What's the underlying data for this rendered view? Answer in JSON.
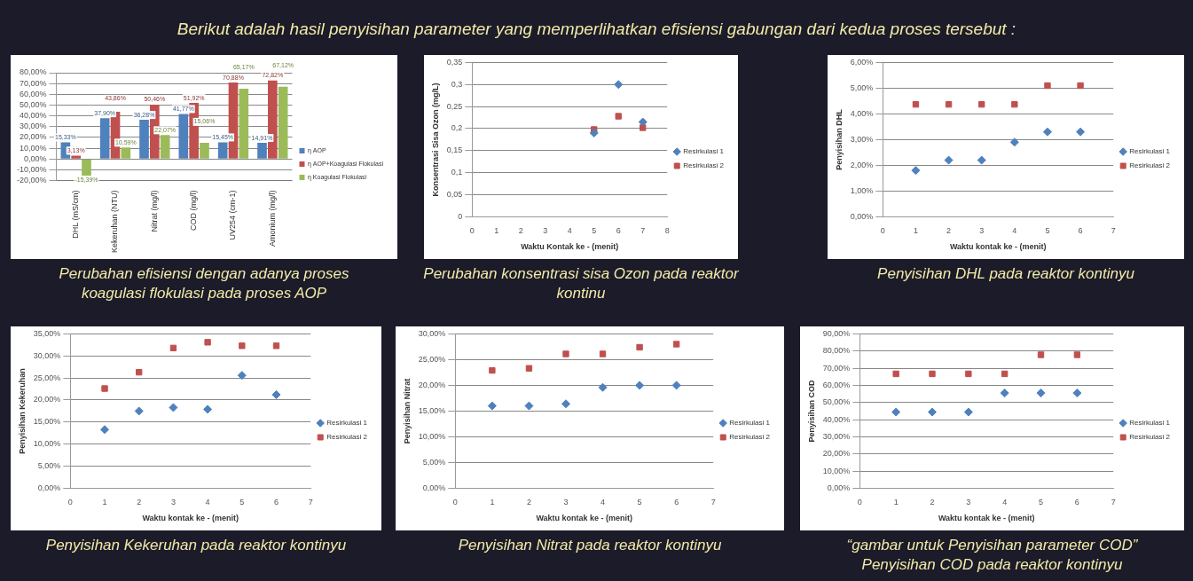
{
  "chart_data": [
    {
      "type": "bar",
      "title": "Berikut adalah hasil penyisihan parameter yang memperlihatkan efisiensi gabungan dari kedua proses tersebut :",
      "annotations": [
        "Perubahan efisiensi dengan adanya proses koagulasi flokulasi pada proses AOP"
      ],
      "categories": [
        "DHL (mS/cm)",
        "Kekeruhan (NTU)",
        "Nitrat (mg/l)",
        "COD (mg/l)",
        "UV254 (cm-1)",
        "Amonium (mg/l)"
      ],
      "series": [
        {
          "name": "η AOP",
          "color": "#4f81bd",
          "values": [
            15.33,
            37.9,
            36.28,
            41.77,
            15.45,
            14.91
          ],
          "value_labels": [
            "15,33%",
            "37,90%",
            "36,28%",
            "41,77%",
            "15,45%",
            "14,91%"
          ]
        },
        {
          "name": "η AOP+Koagulasi Flokulasi",
          "color": "#c0504d",
          "values": [
            3.13,
            43.86,
            50.46,
            51.92,
            70.88,
            72.82
          ],
          "value_labels": [
            "3,13%",
            "43,86%",
            "50,46%",
            "51,92%",
            "70,88%",
            "72,82%"
          ]
        },
        {
          "name": "η Koagulasi Flokulasi",
          "color": "#9bbb59",
          "values": [
            -15.39,
            10.59,
            22.07,
            15.06,
            65.17,
            67.12
          ],
          "value_labels": [
            "-15,39%",
            "10,59%",
            "22,07%",
            "15,06%",
            "65,17%",
            "67,12%"
          ]
        }
      ],
      "ylim": [
        -20,
        80
      ],
      "yticks": [
        {
          "value": -20,
          "label": "-20,00%"
        },
        {
          "value": -10,
          "label": "-10,00%"
        },
        {
          "value": 0,
          "label": "0,00%"
        },
        {
          "value": 10,
          "label": "10,00%"
        },
        {
          "value": 20,
          "label": "20,00%"
        },
        {
          "value": 30,
          "label": "30,00%"
        },
        {
          "value": 40,
          "label": "40,00%"
        },
        {
          "value": 50,
          "label": "50,00%"
        },
        {
          "value": 60,
          "label": "60,00%"
        },
        {
          "value": 70,
          "label": "70,00%"
        },
        {
          "value": 80,
          "label": "80,00%"
        }
      ],
      "grid": "y",
      "legend": "right"
    },
    {
      "type": "scatter",
      "annotations": [
        "Perubahan konsentrasi sisa Ozon pada reaktor kontinu"
      ],
      "xlabel": "Waktu Kontak ke - (menit)",
      "ylabel": "Konsentrasi Sisa Ozon (mg/L)",
      "x": [
        5,
        6,
        7
      ],
      "series": [
        {
          "name": "Resirkulasi 1",
          "color": "#4f81bd",
          "marker": "diamond",
          "values": [
            0.19,
            0.3,
            0.215
          ]
        },
        {
          "name": "Resirkulasi 2",
          "color": "#c0504d",
          "marker": "square",
          "values": [
            0.198,
            0.228,
            0.202
          ]
        }
      ],
      "xlim": [
        0,
        8
      ],
      "xticks": [
        0,
        1,
        2,
        3,
        4,
        5,
        6,
        7,
        8
      ],
      "ylim": [
        0,
        0.35
      ],
      "yticks": [
        0,
        {
          "value": 0.05,
          "label": "0,05"
        },
        {
          "value": 0.1,
          "label": "0,1"
        },
        {
          "value": 0.15,
          "label": "0,15"
        },
        {
          "value": 0.2,
          "label": "0,2"
        },
        {
          "value": 0.25,
          "label": "0,25"
        },
        {
          "value": 0.3,
          "label": "0,3"
        },
        {
          "value": 0.35,
          "label": "0,35"
        }
      ],
      "grid": "y",
      "legend": "right"
    },
    {
      "type": "scatter",
      "annotations": [
        "Penyisihan DHL pada reaktor kontinyu"
      ],
      "xlabel": "Waktu kontak ke - (menit)",
      "ylabel": "Penyisihan DHL",
      "x": [
        1,
        2,
        3,
        4,
        5,
        6
      ],
      "series": [
        {
          "name": "Resirkulasi 1",
          "color": "#4f81bd",
          "marker": "diamond",
          "values": [
            1.8,
            2.2,
            2.2,
            2.9,
            3.3,
            3.3
          ]
        },
        {
          "name": "Resirkulasi 2",
          "color": "#c0504d",
          "marker": "square",
          "values": [
            4.37,
            4.37,
            4.37,
            4.37,
            5.1,
            5.1
          ]
        }
      ],
      "xlim": [
        0,
        7
      ],
      "xticks": [
        0,
        1,
        2,
        3,
        4,
        5,
        6,
        7
      ],
      "ylim": [
        0,
        6
      ],
      "yticks": [
        {
          "value": 0,
          "label": "0,00%"
        },
        {
          "value": 1,
          "label": "1,00%"
        },
        {
          "value": 2,
          "label": "2,00%"
        },
        {
          "value": 3,
          "label": "3,00%"
        },
        {
          "value": 4,
          "label": "4,00%"
        },
        {
          "value": 5,
          "label": "5,00%"
        },
        {
          "value": 6,
          "label": "6,00%"
        }
      ],
      "grid": "y",
      "legend": "right"
    },
    {
      "type": "scatter",
      "annotations": [
        "Penyisihan Kekeruhan pada reaktor kontinyu"
      ],
      "xlabel": "Waktu kontak ke - (menit)",
      "ylabel": "Penyisihan Kekeruhan",
      "x": [
        1,
        2,
        3,
        4,
        5,
        6
      ],
      "series": [
        {
          "name": "Resirkulasi 1",
          "color": "#4f81bd",
          "marker": "diamond",
          "values": [
            13.3,
            17.5,
            18.3,
            17.9,
            25.6,
            21.2
          ]
        },
        {
          "name": "Resirkulasi 2",
          "color": "#c0504d",
          "marker": "square",
          "values": [
            22.6,
            26.3,
            31.8,
            33.1,
            32.3,
            32.3
          ]
        }
      ],
      "xlim": [
        0,
        7
      ],
      "xticks": [
        0,
        1,
        2,
        3,
        4,
        5,
        6,
        7
      ],
      "ylim": [
        0,
        35
      ],
      "yticks": [
        {
          "value": 0,
          "label": "0,00%"
        },
        {
          "value": 5,
          "label": "5,00%"
        },
        {
          "value": 10,
          "label": "10,00%"
        },
        {
          "value": 15,
          "label": "15,00%"
        },
        {
          "value": 20,
          "label": "20,00%"
        },
        {
          "value": 25,
          "label": "25,00%"
        },
        {
          "value": 30,
          "label": "30,00%"
        },
        {
          "value": 35,
          "label": "35,00%"
        }
      ],
      "grid": "y",
      "legend": "right"
    },
    {
      "type": "scatter",
      "annotations": [
        "Penyisihan Nitrat pada reaktor kontinyu"
      ],
      "xlabel": "Waktu kontak ke - (menit)",
      "ylabel": "Penyisihan Nitrat",
      "x": [
        1,
        2,
        3,
        4,
        5,
        6
      ],
      "series": [
        {
          "name": "Resirkulasi 1",
          "color": "#4f81bd",
          "marker": "diamond",
          "values": [
            16,
            16,
            16.4,
            19.6,
            20,
            20
          ]
        },
        {
          "name": "Resirkulasi 2",
          "color": "#c0504d",
          "marker": "square",
          "values": [
            22.9,
            23.3,
            26.1,
            26.1,
            27.4,
            28
          ]
        }
      ],
      "xlim": [
        0,
        7
      ],
      "xticks": [
        0,
        1,
        2,
        3,
        4,
        5,
        6,
        7
      ],
      "ylim": [
        0,
        30
      ],
      "yticks": [
        {
          "value": 0,
          "label": "0,00%"
        },
        {
          "value": 5,
          "label": "5,00%"
        },
        {
          "value": 10,
          "label": "10,00%"
        },
        {
          "value": 15,
          "label": "15,00%"
        },
        {
          "value": 20,
          "label": "20,00%"
        },
        {
          "value": 25,
          "label": "25,00%"
        },
        {
          "value": 30,
          "label": "30,00%"
        }
      ],
      "grid": "y",
      "legend": "right"
    },
    {
      "type": "scatter",
      "annotations": [
        "“gambar untuk Penyisihan parameter COD”",
        "Penyisihan COD pada reaktor kontinyu"
      ],
      "xlabel": "Waktu kontak ke - (menit)",
      "ylabel": "Penyisihan COD",
      "x": [
        1,
        2,
        3,
        4,
        5,
        6
      ],
      "series": [
        {
          "name": "Resirkulasi 1",
          "color": "#4f81bd",
          "marker": "diamond",
          "values": [
            44.4,
            44.4,
            44.4,
            55.5,
            55.5,
            55.5
          ]
        },
        {
          "name": "Resirkulasi 2",
          "color": "#c0504d",
          "marker": "square",
          "values": [
            66.7,
            66.7,
            66.7,
            66.7,
            77.8,
            77.8
          ]
        }
      ],
      "xlim": [
        0,
        7
      ],
      "xticks": [
        0,
        1,
        2,
        3,
        4,
        5,
        6,
        7
      ],
      "ylim": [
        0,
        90
      ],
      "yticks": [
        {
          "value": 0,
          "label": "0,00%"
        },
        {
          "value": 10,
          "label": "10,00%"
        },
        {
          "value": 20,
          "label": "20,00%"
        },
        {
          "value": 30,
          "label": "30,00%"
        },
        {
          "value": 40,
          "label": "40,00%"
        },
        {
          "value": 50,
          "label": "50,00%"
        },
        {
          "value": 60,
          "label": "60,00%"
        },
        {
          "value": 70,
          "label": "70,00%"
        },
        {
          "value": 80,
          "label": "80,00%"
        },
        {
          "value": 90,
          "label": "90,00%"
        }
      ],
      "grid": "y",
      "legend": "right"
    }
  ]
}
